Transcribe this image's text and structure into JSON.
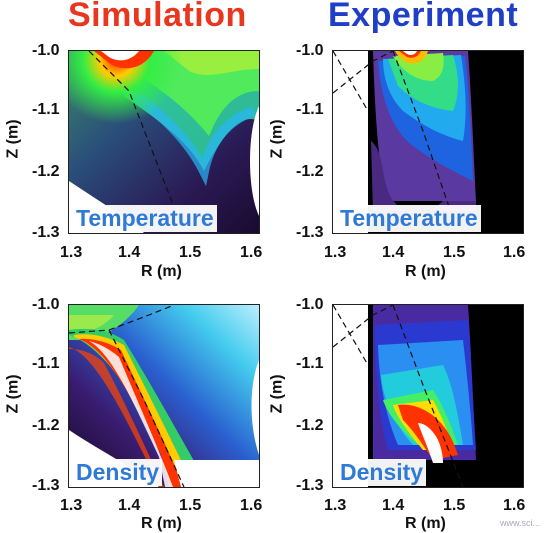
{
  "headers": {
    "simulation": "Simulation",
    "experiment": "Experiment"
  },
  "panels": [
    {
      "id": "sim-temperature",
      "label": "Temperature"
    },
    {
      "id": "exp-temperature",
      "label": "Temperature"
    },
    {
      "id": "sim-density",
      "label": "Density"
    },
    {
      "id": "exp-density",
      "label": "Density"
    }
  ],
  "axes": {
    "y_ticks": [
      "-1.0",
      "-1.1",
      "-1.2",
      "-1.3"
    ],
    "x_ticks": [
      "1.3",
      "1.4",
      "1.5",
      "1.6"
    ],
    "xlabel": "R (m)",
    "ylabel": "Z (m)"
  },
  "watermark": "www.sci..."
}
